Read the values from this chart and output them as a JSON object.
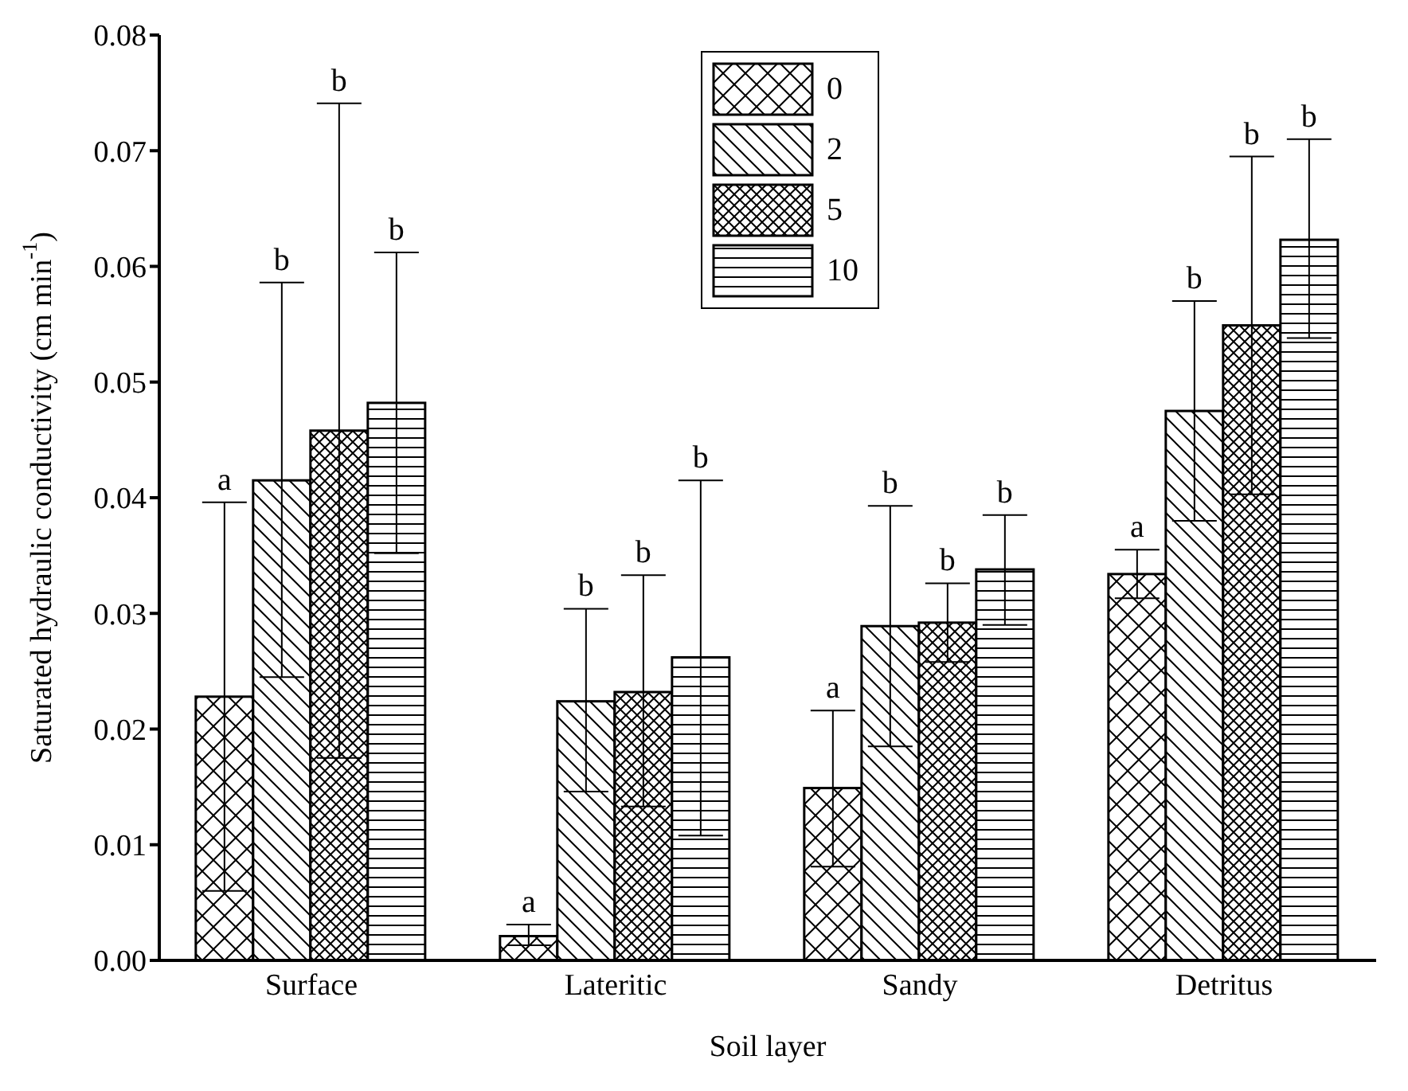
{
  "chart_data": {
    "type": "bar",
    "xlabel": "Soil layer",
    "ylabel": "Saturated hydraulic conductivity (cm min$^{-1}$)",
    "categories": [
      "Surface",
      "Lateritic",
      "Sandy",
      "Detritus"
    ],
    "series": [
      {
        "name": "0",
        "color": "#000000",
        "values": [
          0.0228,
          0.0021,
          0.0149,
          0.0334
        ],
        "errors": [
          [
            0.006,
            0.0396
          ],
          [
            0.0013,
            0.0031
          ],
          [
            0.0081,
            0.0216
          ],
          [
            0.0313,
            0.0355
          ]
        ]
      },
      {
        "name": "2",
        "color": "#000000",
        "values": [
          0.0415,
          0.0224,
          0.0289,
          0.0475
        ],
        "errors": [
          [
            0.0245,
            0.0586
          ],
          [
            0.0146,
            0.0304
          ],
          [
            0.0185,
            0.0393
          ],
          [
            0.038,
            0.057
          ]
        ]
      },
      {
        "name": "5",
        "color": "#000000",
        "values": [
          0.0458,
          0.0232,
          0.0292,
          0.0549
        ],
        "errors": [
          [
            0.0175,
            0.0741
          ],
          [
            0.0133,
            0.0333
          ],
          [
            0.0258,
            0.0326
          ],
          [
            0.0403,
            0.0695
          ]
        ]
      },
      {
        "name": "10",
        "color": "#000000",
        "values": [
          0.0482,
          0.0262,
          0.0338,
          0.0623
        ],
        "errors": [
          [
            0.0352,
            0.0612
          ],
          [
            0.0108,
            0.0415
          ],
          [
            0.029,
            0.0385
          ],
          [
            0.0538,
            0.071
          ]
        ]
      }
    ],
    "ylim": [
      0,
      0.08
    ],
    "yticks": [
      {
        "value": 0,
        "label": "0.00"
      },
      {
        "value": 0.01,
        "label": "0.01"
      },
      {
        "value": 0.02,
        "label": "0.02"
      },
      {
        "value": 0.03,
        "label": "0.03"
      },
      {
        "value": 0.04,
        "label": "0.04"
      },
      {
        "value": 0.05,
        "label": "0.05"
      },
      {
        "value": 0.06,
        "label": "0.06"
      },
      {
        "value": 0.07,
        "label": "0.07"
      },
      {
        "value": 0.08,
        "label": "0.08"
      }
    ],
    "grid": false,
    "legend": "top",
    "annotations": [
      "a",
      "b",
      "b",
      "b",
      "a",
      "b",
      "b",
      "b",
      "a",
      "b",
      "b",
      "b",
      "a",
      "b",
      "b",
      "b"
    ]
  }
}
